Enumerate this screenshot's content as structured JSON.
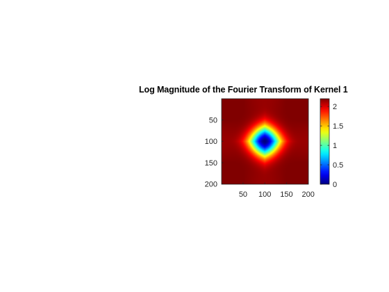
{
  "chart_data": {
    "type": "heatmap",
    "title": "Log Magnitude of the Fourier Transform of Kernel 1",
    "xlabel": "",
    "ylabel": "",
    "x_range": [
      1,
      200
    ],
    "y_range": [
      1,
      200
    ],
    "y_reversed": true,
    "x_ticks": [
      50,
      100,
      150,
      200
    ],
    "x_tick_labels": [
      "50",
      "100",
      "150",
      "200"
    ],
    "y_ticks": [
      50,
      100,
      150,
      200
    ],
    "y_tick_labels": [
      "50",
      "100",
      "150",
      "200"
    ],
    "colormap": "jet",
    "color_limits": [
      0,
      2.2
    ],
    "colorbar_ticks": [
      0,
      0.5,
      1,
      1.5,
      2
    ],
    "colorbar_tick_labels": [
      "0",
      "0.5",
      "1",
      "1.5",
      "2"
    ],
    "description_values": {
      "center": [
        100,
        100
      ],
      "min_value_at_center": 0.0,
      "max_value_at_corners": 2.2
    }
  }
}
